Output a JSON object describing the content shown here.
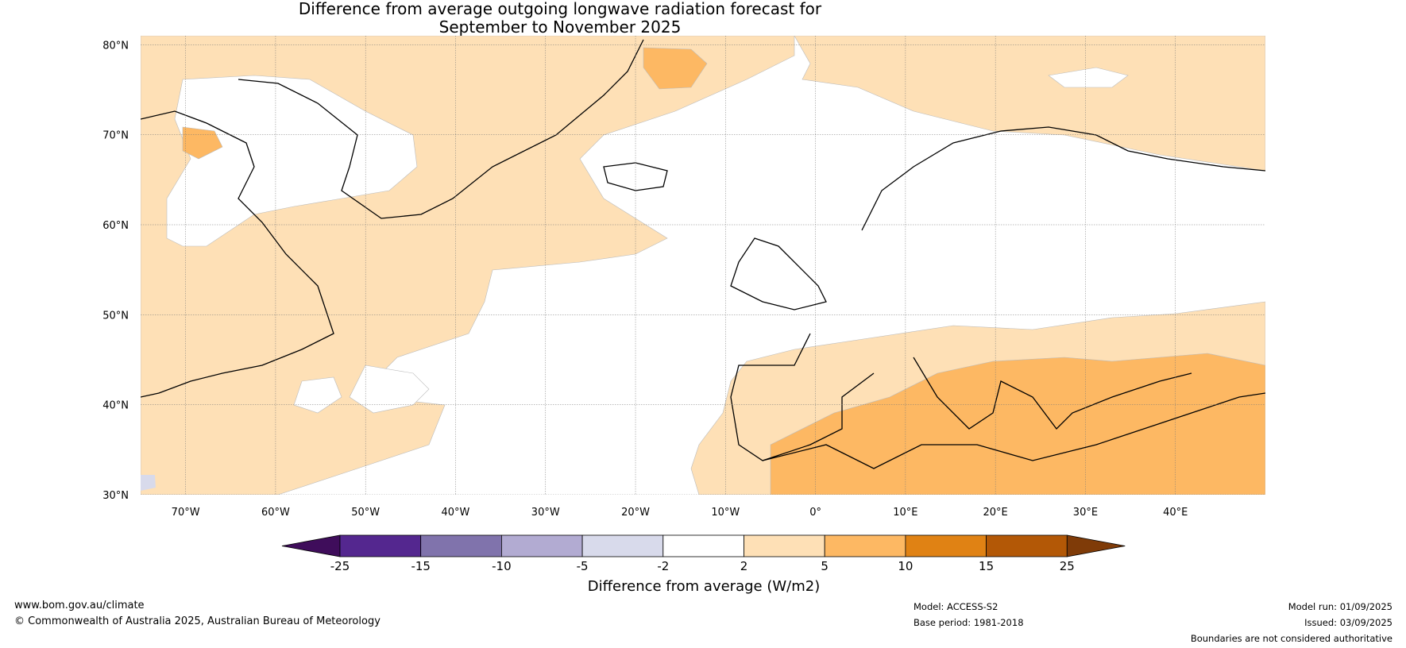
{
  "title": {
    "line1": "Difference from average outgoing longwave radiation forecast for",
    "line2": "September to November 2025"
  },
  "map": {
    "lat_labels": [
      "80°N",
      "70°N",
      "60°N",
      "50°N",
      "40°N",
      "30°N"
    ],
    "lon_labels": [
      "70°W",
      "60°W",
      "50°W",
      "40°W",
      "30°W",
      "20°W",
      "10°W",
      "0°",
      "10°E",
      "20°E",
      "30°E",
      "40°E"
    ],
    "lon_range": [
      "75°W",
      "50°E"
    ],
    "lat_range": [
      "30°N",
      "81°N"
    ]
  },
  "colorbar": {
    "title": "Difference from average (W/m2)",
    "colors": [
      "#3f0d5b",
      "#54278f",
      "#8073ac",
      "#b2abd2",
      "#d8daeb",
      "#ffffff",
      "#fee0b6",
      "#fdb863",
      "#e08214",
      "#b35806",
      "#7f3b08"
    ],
    "tick_labels": [
      "-25",
      "-15",
      "-10",
      "-5",
      "-2",
      "2",
      "5",
      "10",
      "15",
      "25"
    ]
  },
  "footer": {
    "website": "www.bom.gov.au/climate",
    "copyright": "© Commonwealth of Australia 2025, Australian Bureau of Meteorology",
    "model": "Model: ACCESS-S2",
    "base_period": "Base period: 1981-2018",
    "model_run": "Model run: 01/09/2025",
    "issued": "Issued: 03/09/2025",
    "disclaimer": "Boundaries are not considered authoritative"
  }
}
